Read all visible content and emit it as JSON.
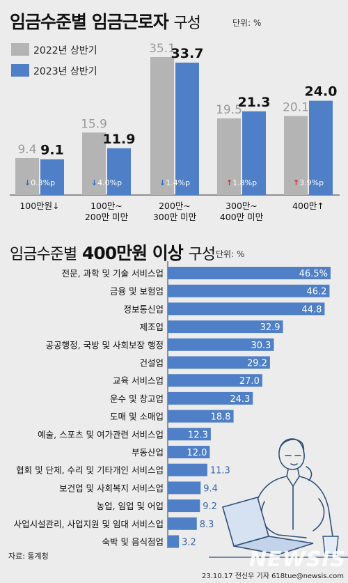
{
  "top": {
    "title_bold": "임금수준별 임금근로자",
    "title_light": "구성",
    "unit": "단위: %"
  },
  "legend": [
    {
      "label": "2022년 상반기",
      "color": "#b4b4b4"
    },
    {
      "label": "2023년 상반기",
      "color": "#4f7fc6"
    }
  ],
  "bottom": {
    "title_light1": "임금수준별",
    "title_bold": "400만원 이상",
    "title_light2": "구성",
    "unit": "단위: %"
  },
  "chart_data": [
    {
      "type": "bar",
      "categories": [
        [
          "100만원↓"
        ],
        [
          "100만~",
          "200만 미만"
        ],
        [
          "200만~",
          "300만 미만"
        ],
        [
          "300만~",
          "400만 미만"
        ],
        [
          "400만↑"
        ]
      ],
      "series": [
        {
          "name": "2022년 상반기",
          "values": [
            9.4,
            15.9,
            35.1,
            19.5,
            20.1
          ],
          "labels": [
            "9.4",
            "15.9",
            "35.1",
            "19.5",
            "20.1"
          ]
        },
        {
          "name": "2023년 상반기",
          "values": [
            9.1,
            11.9,
            33.7,
            21.3,
            24.0
          ],
          "labels": [
            "9.1",
            "11.9",
            "33.7",
            "21.3",
            "24.0"
          ]
        }
      ],
      "changes": [
        {
          "dir": "down",
          "text": "0.3%p"
        },
        {
          "dir": "down",
          "text": "4.0%p"
        },
        {
          "dir": "down",
          "text": "1.4%p"
        },
        {
          "dir": "up",
          "text": "1.8%p"
        },
        {
          "dir": "up",
          "text": "3.9%p"
        }
      ],
      "ylim": [
        0,
        38
      ]
    },
    {
      "type": "bar",
      "orientation": "horizontal",
      "categories": [
        "전문, 과학 및 기술 서비스업",
        "금융 및 보험업",
        "정보통신업",
        "제조업",
        "공공행정, 국방 및 사회보장 행정",
        "건설업",
        "교육 서비스업",
        "운수 및 창고업",
        "도매 및 소매업",
        "예술, 스포츠 및 여가관련 서비스업",
        "부동산업",
        "협회 및 단체, 수리 및 기타개인 서비스업",
        "보건업 및 사회복지 서비스업",
        "농업, 임업 및 어업",
        "사업시설관리, 사업지원 및 임대 서비스업",
        "숙박 및 음식점업"
      ],
      "values": [
        46.5,
        46.2,
        44.8,
        32.9,
        30.3,
        29.2,
        27.0,
        24.3,
        18.8,
        12.3,
        12.0,
        11.3,
        9.4,
        9.2,
        8.3,
        3.2
      ],
      "labels": [
        "46.5%",
        "46.2",
        "44.8",
        "32.9",
        "30.3",
        "29.2",
        "27.0",
        "24.3",
        "18.8",
        "12.3",
        "12.0",
        "11.3",
        "9.4",
        "9.2",
        "8.3",
        "3.2"
      ],
      "xlim": [
        0,
        47.5
      ],
      "color": "#4f7fc6"
    }
  ],
  "footer": {
    "source": "자료: 통계청",
    "credit": "23.10.17 전신우 기자 618tue@newsis.com",
    "watermark": "NEWSIS"
  }
}
